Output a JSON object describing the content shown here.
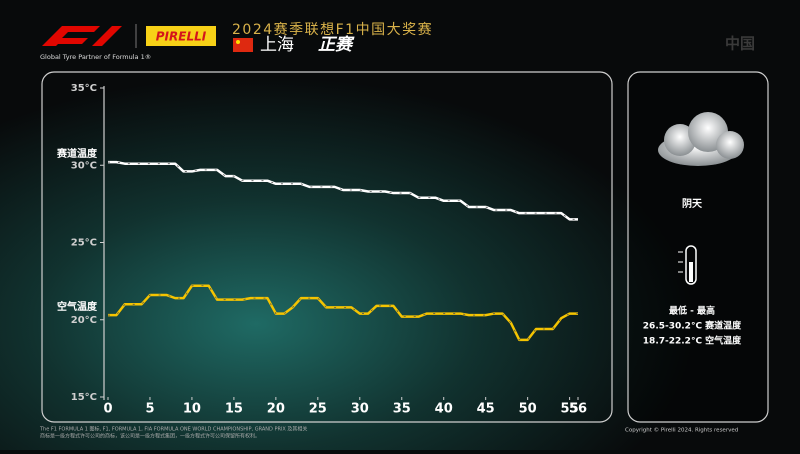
{
  "header": {
    "tagline": "Global Tyre Partner of Formula 1®",
    "brand": "PIRELLI",
    "event": "2024赛季联想F1中国大奖赛",
    "city": "上海",
    "session": "正赛",
    "country": "中国"
  },
  "weather": {
    "condition": "阴天",
    "range_title": "最低 - 最高",
    "track_range": "26.5-30.2°C 赛道温度",
    "air_range": "18.7-22.2°C 空气温度"
  },
  "footer": {
    "legal_1": "The F1 FORMULA 1 图标, F1, FORMULA 1, FIA FORMULA ONE WORLD CHAMPIONSHIP, GRAND PRIX 及其相关",
    "legal_2": "商标是一级方程式许可公司的商标，该公司是一级方程式集团，一级方程式许可公司保留所有权利。",
    "copyright": "Copyright © Pirelli 2024. Rights reserved"
  },
  "chart_data": {
    "type": "line",
    "x": [
      0,
      1,
      2,
      3,
      4,
      5,
      6,
      7,
      8,
      9,
      10,
      11,
      12,
      13,
      14,
      15,
      16,
      17,
      18,
      19,
      20,
      21,
      22,
      23,
      24,
      25,
      26,
      27,
      28,
      29,
      30,
      31,
      32,
      33,
      34,
      35,
      36,
      37,
      38,
      39,
      40,
      41,
      42,
      43,
      44,
      45,
      46,
      47,
      48,
      49,
      50,
      51,
      52,
      53,
      54,
      55,
      56
    ],
    "series": [
      {
        "name": "赛道温度",
        "color": "#ffffff",
        "values": [
          30.2,
          30.2,
          30.1,
          30.1,
          30.1,
          30.1,
          30.1,
          30.1,
          30.1,
          29.6,
          29.6,
          29.7,
          29.7,
          29.7,
          29.3,
          29.3,
          29.0,
          29.0,
          29.0,
          29.0,
          28.8,
          28.8,
          28.8,
          28.8,
          28.6,
          28.6,
          28.6,
          28.6,
          28.4,
          28.4,
          28.4,
          28.3,
          28.3,
          28.3,
          28.2,
          28.2,
          28.2,
          27.9,
          27.9,
          27.9,
          27.7,
          27.7,
          27.7,
          27.3,
          27.3,
          27.3,
          27.1,
          27.1,
          27.1,
          26.9,
          26.9,
          26.9,
          26.9,
          26.9,
          26.9,
          26.5,
          26.5
        ]
      },
      {
        "name": "空气温度",
        "color": "#f5c400",
        "values": [
          20.3,
          20.3,
          21.0,
          21.0,
          21.0,
          21.6,
          21.6,
          21.6,
          21.4,
          21.4,
          22.2,
          22.2,
          22.2,
          21.3,
          21.3,
          21.3,
          21.3,
          21.4,
          21.4,
          21.4,
          20.4,
          20.4,
          20.8,
          21.4,
          21.4,
          21.4,
          20.8,
          20.8,
          20.8,
          20.8,
          20.4,
          20.4,
          20.9,
          20.9,
          20.9,
          20.2,
          20.2,
          20.2,
          20.4,
          20.4,
          20.4,
          20.4,
          20.4,
          20.3,
          20.3,
          20.3,
          20.4,
          20.4,
          19.8,
          18.7,
          18.7,
          19.4,
          19.4,
          19.4,
          20.1,
          20.4,
          20.4
        ]
      }
    ],
    "xlim": [
      0,
      56
    ],
    "xticks": [
      0,
      5,
      10,
      15,
      20,
      25,
      30,
      35,
      40,
      45,
      50,
      55,
      56
    ],
    "ylim": [
      15,
      35
    ],
    "yticks": [
      {
        "value": 15,
        "label": "15°C"
      },
      {
        "value": 20,
        "label": "20°C"
      },
      {
        "value": 25,
        "label": "25°C"
      },
      {
        "value": 30,
        "label": "30°C"
      },
      {
        "value": 35,
        "label": "35°C"
      }
    ]
  }
}
